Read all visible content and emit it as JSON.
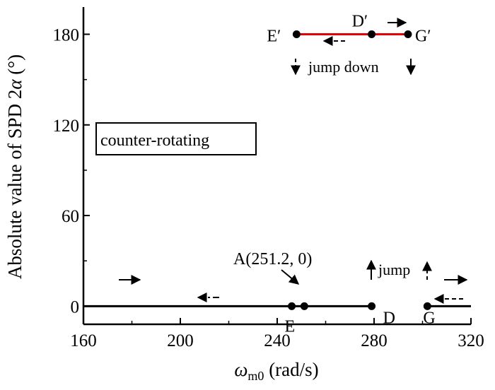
{
  "chart_data": {
    "type": "line",
    "x_label_main": "ω",
    "x_label_sub": "m0",
    "x_label_unit": " (rad/s)",
    "y_label_main": "Absolute value of SPD 2",
    "y_label_alpha": "α",
    "y_label_unit": " (°)",
    "xlim": [
      160,
      320
    ],
    "ylim": [
      -12,
      198
    ],
    "xticks": [
      160,
      200,
      240,
      280,
      320
    ],
    "yticks": [
      0,
      60,
      120,
      180
    ],
    "grid": false,
    "box_label": "counter-rotating",
    "series": [
      {
        "color": "#000000",
        "points": [
          [
            160,
            0
          ],
          [
            279,
            0
          ]
        ]
      },
      {
        "color": "#000000",
        "points": [
          [
            302,
            0
          ],
          [
            320,
            0
          ]
        ]
      },
      {
        "color": "#e00000",
        "points": [
          [
            248,
            180
          ],
          [
            294,
            180
          ]
        ]
      }
    ],
    "points": [
      {
        "label": "E",
        "x": 246,
        "y": 0
      },
      {
        "label": "",
        "x": 251.2,
        "y": 0
      },
      {
        "label": "D",
        "x": 279,
        "y": 0
      },
      {
        "label": "G",
        "x": 302,
        "y": 0
      },
      {
        "label": "E′",
        "x": 248,
        "y": 180
      },
      {
        "label": "D′",
        "x": 279,
        "y": 180
      },
      {
        "label": "G′",
        "x": 294,
        "y": 180
      }
    ],
    "annotations": {
      "point_a": "A(251.2, 0)",
      "jump": "jump",
      "jump_down": "jump down"
    }
  }
}
